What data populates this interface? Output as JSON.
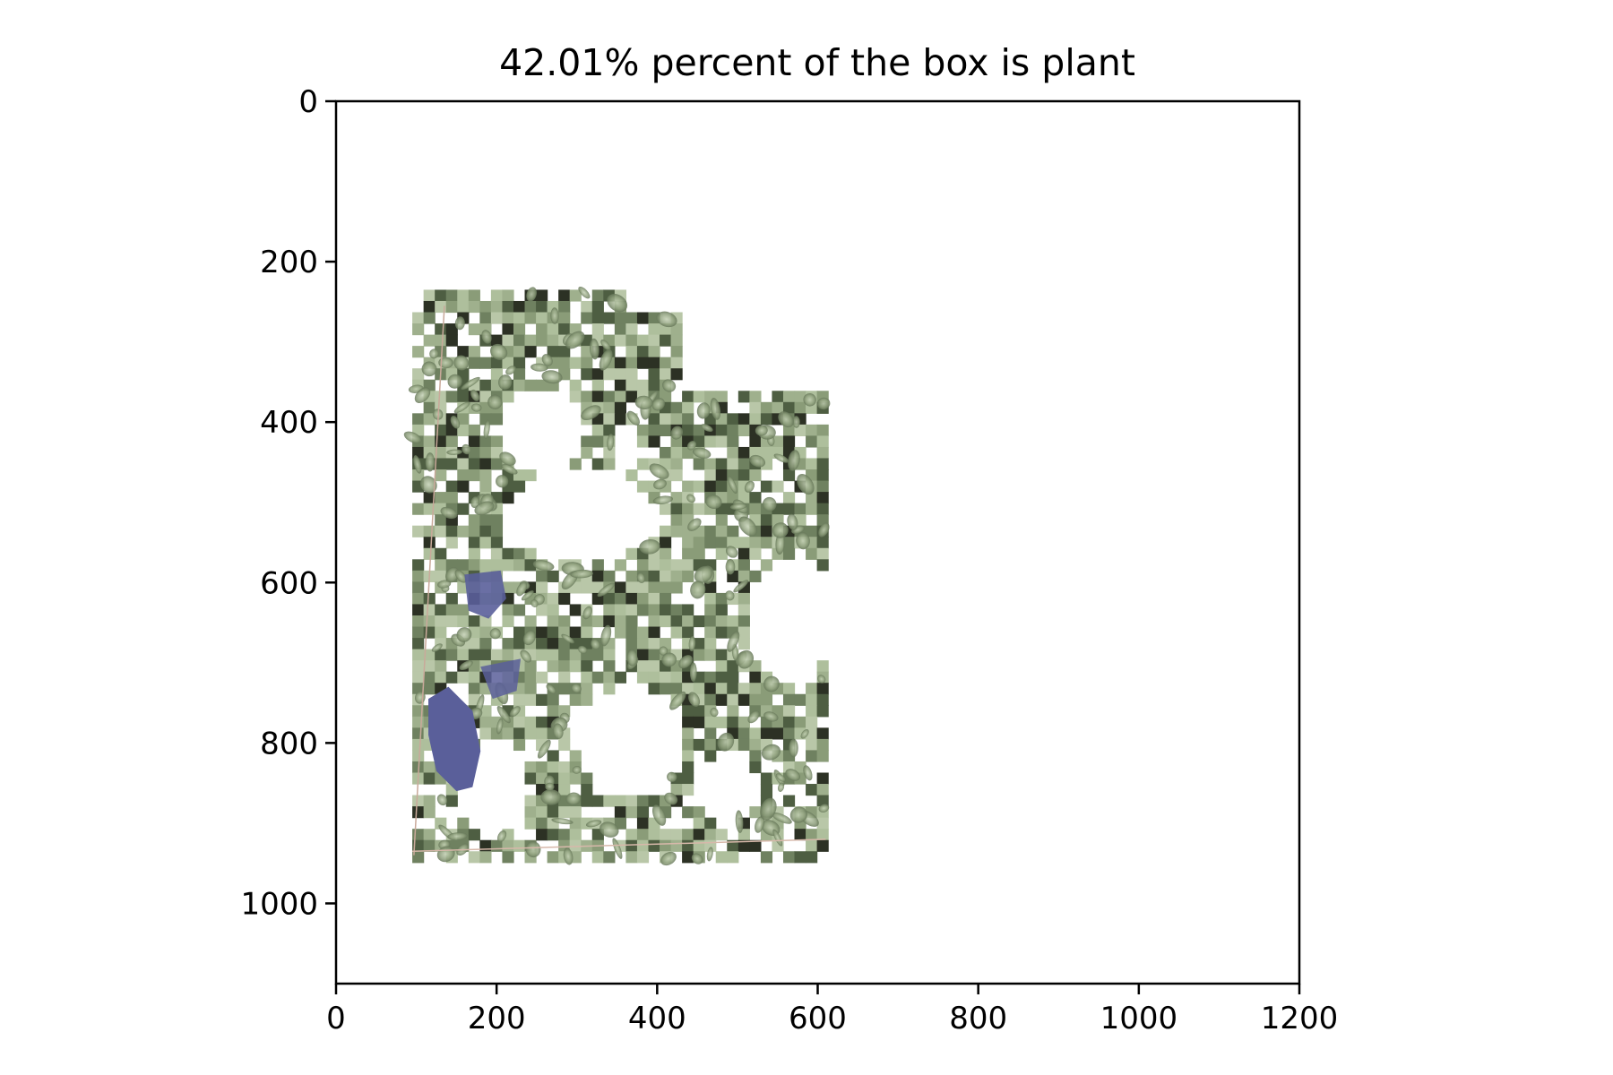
{
  "chart_data": {
    "type": "image",
    "title": "42.01% percent of the box is plant",
    "plant_percent": 42.01,
    "xlim": [
      0,
      1200
    ],
    "ylim": [
      1100,
      0
    ],
    "y_inverted": true,
    "xticks": [
      0,
      200,
      400,
      600,
      800,
      1000,
      1200
    ],
    "yticks": [
      0,
      200,
      400,
      600,
      800,
      1000
    ],
    "grid": false,
    "image_content": {
      "description_free": true,
      "x_range": [
        95,
        610
      ],
      "y_range": [
        235,
        945
      ],
      "colors": {
        "plant_light": "#aebf9c",
        "plant_mid": "#8a9c78",
        "plant_dark": "#4e5e42",
        "soil": "#2c3124",
        "tarp": "#5a5f9a",
        "background": "#ffffff"
      }
    }
  }
}
